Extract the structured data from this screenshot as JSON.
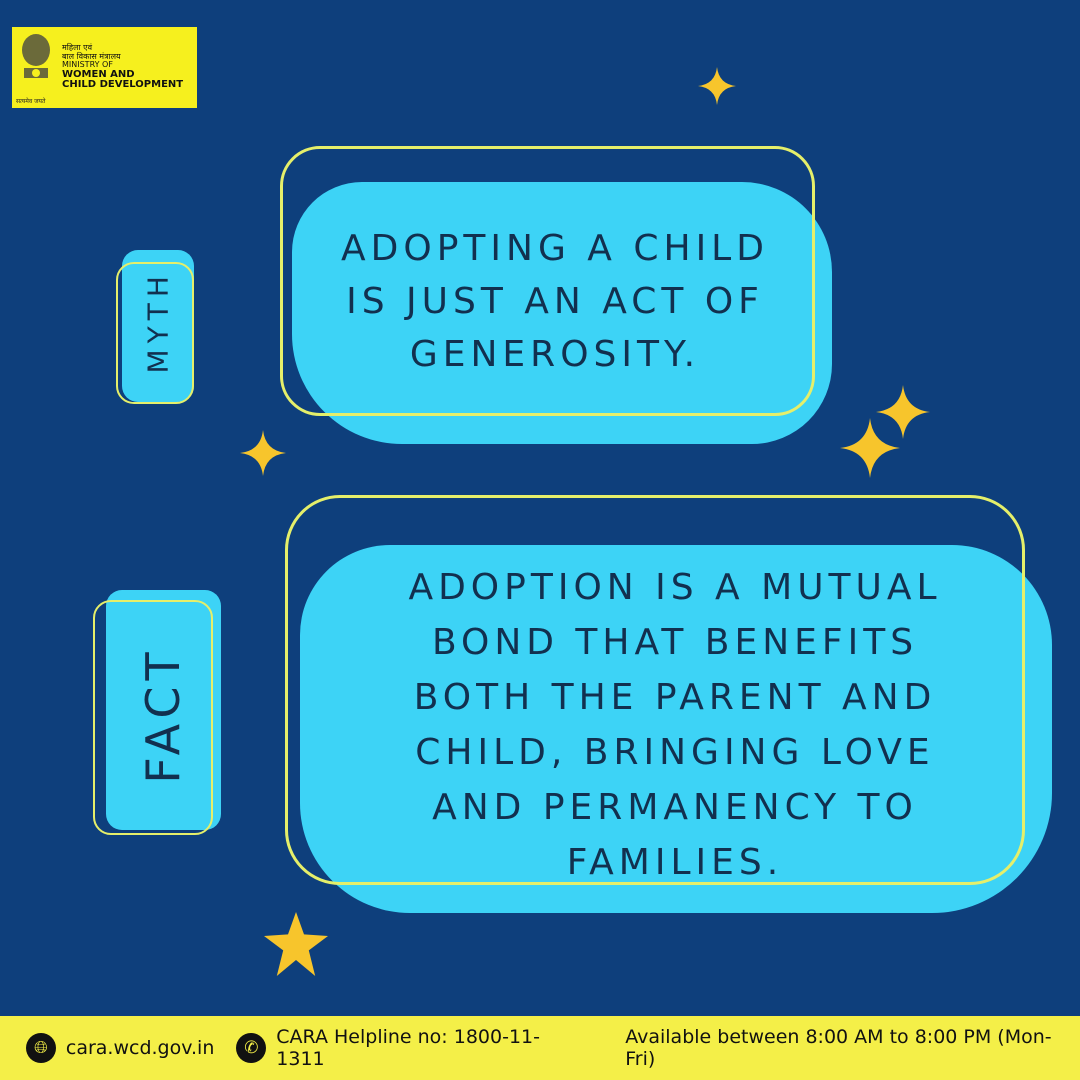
{
  "logo": {
    "hindi_line1": "महिला एवं",
    "hindi_line2": "बाल विकास मंत्रालय",
    "line1": "MINISTRY OF",
    "line2": "WOMEN AND",
    "line3": "CHILD DEVELOPMENT",
    "motto": "सत्यमेव जयते"
  },
  "myth": {
    "label": "MYTH",
    "text": "ADOPTING A CHILD IS JUST AN ACT OF GENEROSITY."
  },
  "fact": {
    "label": "FACT",
    "text": "ADOPTION IS A MUTUAL BOND THAT BENEFITS BOTH THE PARENT AND CHILD, BRINGING LOVE AND PERMANENCY TO FAMILIES."
  },
  "footer": {
    "website_icon": "globe-icon",
    "website": "cara.wcd.gov.in",
    "phone_icon": "phone-icon",
    "helpline": "CARA Helpline no: 1800-11-1311",
    "availability": "Available between 8:00 AM to 8:00 PM (Mon-Fri)"
  },
  "colors": {
    "background": "#0e3f7c",
    "bubble": "#3dd3f6",
    "outline": "#e5ef6a",
    "footer": "#f4ef48",
    "star": "#f7c52c"
  }
}
